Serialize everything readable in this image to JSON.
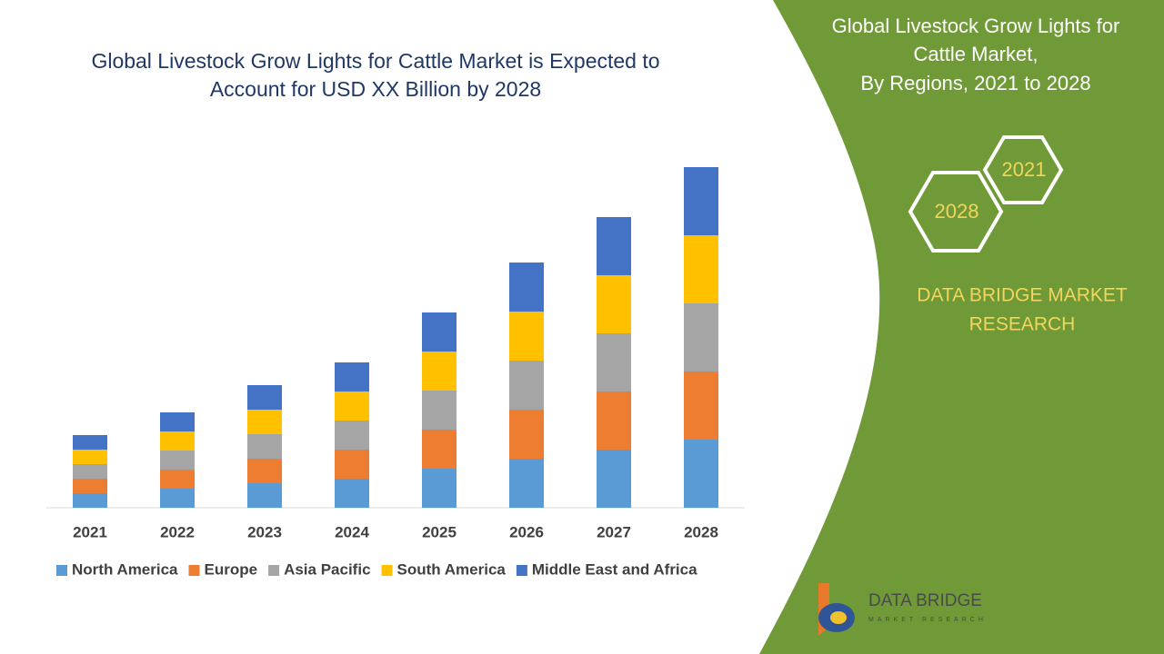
{
  "chart_data": {
    "type": "stacked-bar",
    "title": "Global Livestock Grow Lights for Cattle Market is Expected to Account for USD XX Billion by 2028",
    "categories": [
      "2021",
      "2022",
      "2023",
      "2024",
      "2025",
      "2026",
      "2027",
      "2028"
    ],
    "series": [
      {
        "name": "North America",
        "color": "#5b9bd5",
        "values": [
          1.6,
          2.1,
          2.7,
          3.2,
          4.3,
          5.4,
          6.4,
          7.5
        ]
      },
      {
        "name": "Europe",
        "color": "#ed7d31",
        "values": [
          1.6,
          2.1,
          2.7,
          3.2,
          4.3,
          5.4,
          6.4,
          7.5
        ]
      },
      {
        "name": "Asia Pacific",
        "color": "#a5a5a5",
        "values": [
          1.6,
          2.1,
          2.7,
          3.2,
          4.3,
          5.4,
          6.4,
          7.5
        ]
      },
      {
        "name": "South America",
        "color": "#ffc000",
        "values": [
          1.6,
          2.1,
          2.7,
          3.2,
          4.3,
          5.4,
          6.4,
          7.5
        ]
      },
      {
        "name": "Middle East and Africa",
        "color": "#4472c4",
        "values": [
          1.6,
          2.1,
          2.7,
          3.2,
          4.3,
          5.4,
          6.4,
          7.5
        ]
      }
    ],
    "ylim": [
      0,
      40
    ],
    "legend": "bottom"
  },
  "panel": {
    "title_lines": [
      "Global Livestock Grow Lights for",
      "Cattle Market,",
      "By Regions, 2021 to 2028"
    ],
    "hexagons": [
      "2021",
      "2028"
    ],
    "brand_lines": [
      "DATA BRIDGE MARKET",
      "RESEARCH"
    ],
    "logo": {
      "name": "DATA BRIDGE",
      "tagline": "MARKET RESEARCH"
    }
  }
}
